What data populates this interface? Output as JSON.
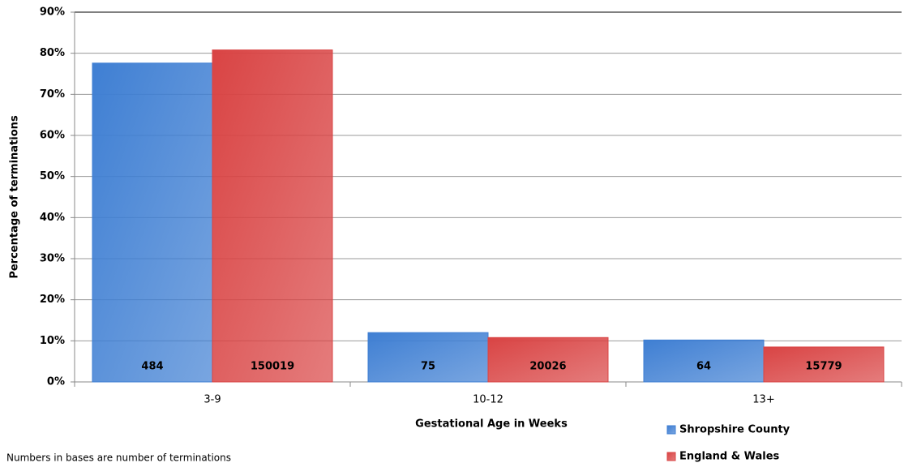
{
  "chart_data": {
    "type": "bar",
    "y_label": "Percentage of terminations",
    "x_label": "Gestational Age in Weeks",
    "note": "Numbers in bases are number of terminations",
    "categories": [
      "3-9",
      "10-12",
      "13+"
    ],
    "series": [
      {
        "name": "Shropshire County",
        "color": "#3f7fd3",
        "values": [
          77.6,
          12.0,
          10.2
        ],
        "bases": [
          484,
          75,
          64
        ]
      },
      {
        "name": "England & Wales",
        "color": "#d94444",
        "values": [
          80.8,
          10.8,
          8.5
        ],
        "bases": [
          150019,
          20026,
          15779
        ]
      }
    ],
    "ylim": [
      0,
      90
    ],
    "yticks": [
      {
        "value": 0,
        "label": "0%"
      },
      {
        "value": 10,
        "label": "10%"
      },
      {
        "value": 20,
        "label": "20%"
      },
      {
        "value": 30,
        "label": "30%"
      },
      {
        "value": 40,
        "label": "40%"
      },
      {
        "value": 50,
        "label": "50%"
      },
      {
        "value": 60,
        "label": "60%"
      },
      {
        "value": 70,
        "label": "70%"
      },
      {
        "value": 80,
        "label": "80%"
      },
      {
        "value": 90,
        "label": "90%"
      }
    ],
    "grid": true,
    "legend": "bottom-right"
  }
}
